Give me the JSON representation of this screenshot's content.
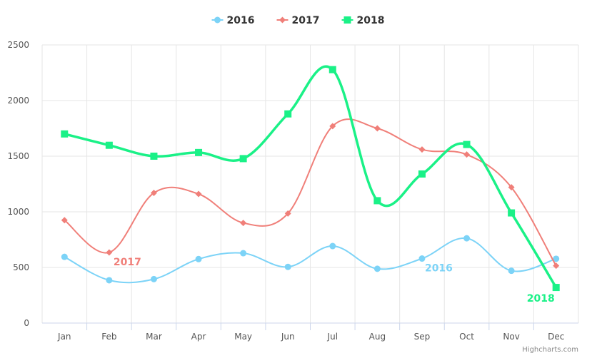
{
  "chart_data": {
    "type": "line",
    "categories": [
      "Jan",
      "Feb",
      "Mar",
      "Apr",
      "May",
      "Jun",
      "Jul",
      "Aug",
      "Sep",
      "Oct",
      "Nov",
      "Dec"
    ],
    "series": [
      {
        "name": "2016",
        "color": "#7cd3f7",
        "marker": "circle",
        "values": [
          595,
          385,
          395,
          575,
          628,
          505,
          692,
          488,
          580,
          762,
          470,
          578
        ],
        "label": "2016",
        "label_near_index": 8
      },
      {
        "name": "2017",
        "color": "#f07f79",
        "marker": "diamond",
        "values": [
          925,
          635,
          1170,
          1160,
          900,
          985,
          1770,
          1750,
          1560,
          1515,
          1220,
          515
        ],
        "label": "2017",
        "label_near_index": 1
      },
      {
        "name": "2018",
        "color": "#1af187",
        "marker": "square",
        "values": [
          1700,
          1598,
          1500,
          1533,
          1478,
          1880,
          2278,
          1100,
          1340,
          1605,
          990,
          320
        ],
        "label": "2018",
        "label_near_index": 11
      }
    ],
    "ylim": [
      0,
      2500
    ],
    "yticks": [
      0,
      500,
      1000,
      1500,
      2000,
      2500
    ],
    "grid": true,
    "legend_position": "top-center",
    "credits": "Highcharts.com"
  }
}
